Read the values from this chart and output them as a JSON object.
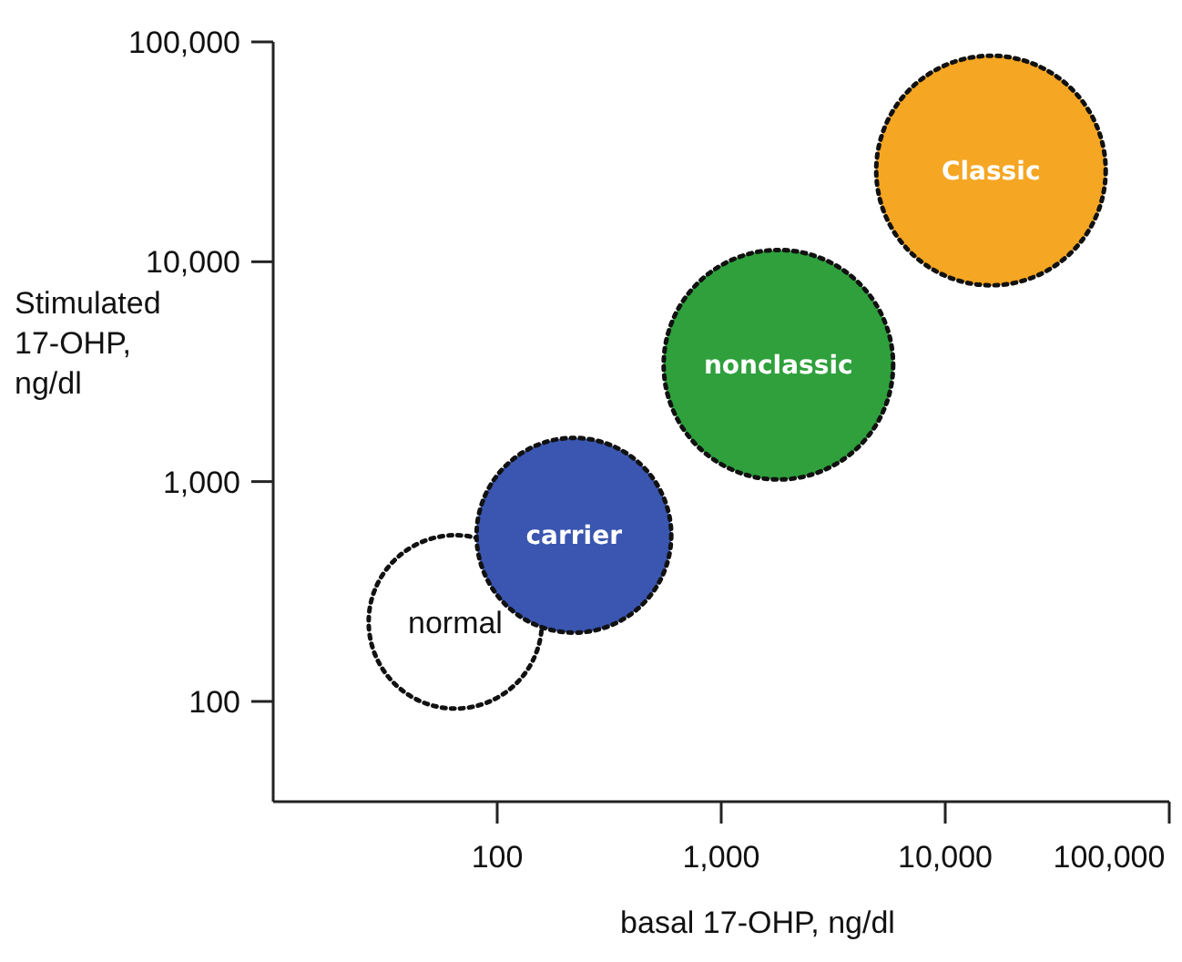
{
  "chart_data": {
    "type": "bubble",
    "xlabel": "basal 17-OHP, ng/dl",
    "ylabel": "Stimulated 17-OHP, ng/dl",
    "log": "xy",
    "xlim": [
      10,
      100000
    ],
    "xticks": [
      {
        "value": 100,
        "label": "100"
      },
      {
        "value": 1000,
        "label": "1,000"
      },
      {
        "value": 10000,
        "label": "10,000"
      },
      {
        "value": 100000,
        "label": "100,000"
      }
    ],
    "ylim": [
      35,
      100000
    ],
    "yticks": [
      {
        "value": 100,
        "label": "100"
      },
      {
        "value": 1000,
        "label": "1,000"
      },
      {
        "value": 10000,
        "label": "10,000"
      },
      {
        "value": 100000,
        "label": "100,000"
      }
    ],
    "line_style": "dotted",
    "legend": false,
    "grid": false,
    "series": [
      {
        "name": "normal",
        "color": "#ffffff",
        "x": [
          65
        ],
        "values": [
          230
        ],
        "sizes": [
          0.57
        ]
      },
      {
        "name": "carrier",
        "color": "#3a56b0",
        "x": [
          220
        ],
        "values": [
          570
        ],
        "sizes": [
          0.72
        ]
      },
      {
        "name": "nonclassic",
        "color": "#2fa03c",
        "x": [
          1800
        ],
        "values": [
          3400
        ],
        "sizes": [
          1
        ]
      },
      {
        "name": "Classic",
        "color": "#f5a623",
        "x": [
          16000
        ],
        "values": [
          26000
        ],
        "sizes": [
          1
        ]
      }
    ]
  }
}
